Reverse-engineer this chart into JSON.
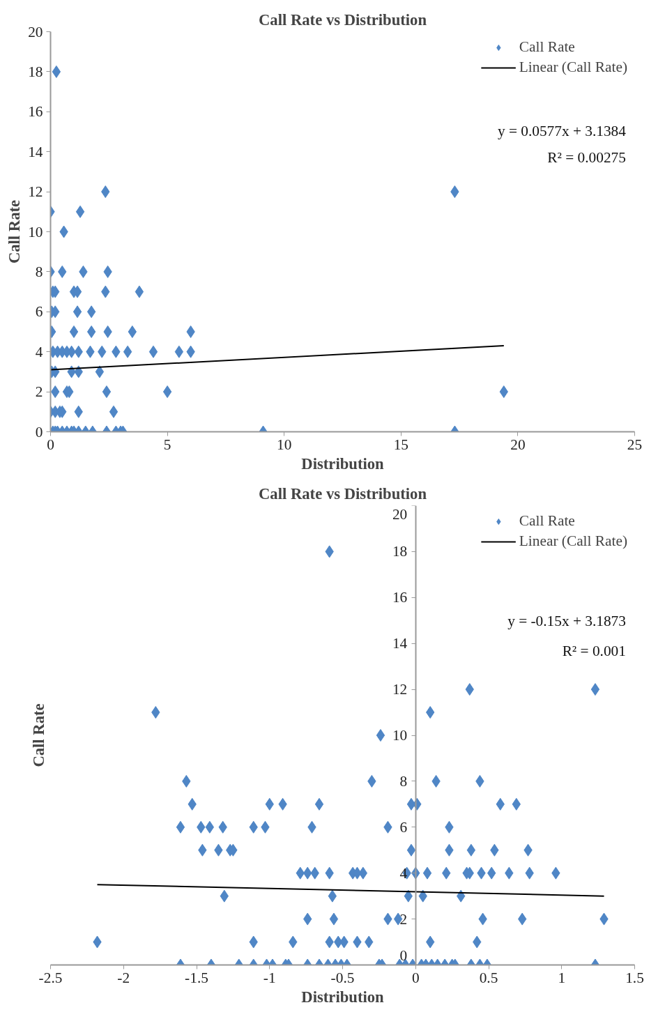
{
  "chart_data": [
    {
      "type": "scatter",
      "title": "Call Rate vs Distribution",
      "xlabel": "Distribution",
      "ylabel": "Call Rate",
      "xlim": [
        0,
        25
      ],
      "ylim": [
        0,
        20
      ],
      "xticks": [
        0,
        5,
        10,
        15,
        20,
        25
      ],
      "yticks": [
        0,
        2,
        4,
        6,
        8,
        10,
        12,
        14,
        16,
        18,
        20
      ],
      "grid": false,
      "legend": "top right",
      "annotations": [
        "y = 0.0577x + 3.1384",
        "R² = 0.00275"
      ],
      "series": [
        {
          "name": "Call Rate",
          "type": "scatter",
          "marker": "diamond",
          "color": "#4f86c6",
          "x": [
            0.25,
            2.35,
            17.3,
            0,
            1.27,
            0.57,
            0,
            0.5,
            1.4,
            2.45,
            0.1,
            0.2,
            1.0,
            1.15,
            2.35,
            3.8,
            0.05,
            0.2,
            1.15,
            1.75,
            0.05,
            1.0,
            1.75,
            2.45,
            3.5,
            6.0,
            0.1,
            0.3,
            0.5,
            0.7,
            0.9,
            1.2,
            1.7,
            2.2,
            2.8,
            3.3,
            4.4,
            5.5,
            6.0,
            0.05,
            0.2,
            0.9,
            1.2,
            2.1,
            0.2,
            0.7,
            0.8,
            2.4,
            5.0,
            19.4,
            0,
            0.2,
            0.4,
            0.5,
            1.2,
            2.7,
            0.1,
            0.2,
            0.3,
            0.5,
            0.7,
            0.9,
            1.0,
            1.2,
            1.5,
            1.8,
            2.4,
            2.8,
            3.0,
            3.1,
            9.1,
            17.3
          ],
          "values": [
            18,
            12,
            12,
            11,
            11,
            10,
            8,
            8,
            8,
            8,
            7,
            7,
            7,
            7,
            7,
            7,
            6,
            6,
            6,
            6,
            5,
            5,
            5,
            5,
            5,
            5,
            4,
            4,
            4,
            4,
            4,
            4,
            4,
            4,
            4,
            4,
            4,
            4,
            4,
            3,
            3,
            3,
            3,
            3,
            2,
            2,
            2,
            2,
            2,
            2,
            1,
            1,
            1,
            1,
            1,
            1,
            0,
            0,
            0,
            0,
            0,
            0,
            0,
            0,
            0,
            0,
            0,
            0,
            0,
            0,
            0,
            0
          ]
        },
        {
          "name": "Linear (Call Rate)",
          "type": "line",
          "color": "#000000",
          "x": [
            0,
            19.4
          ],
          "values": [
            3.1,
            4.3
          ]
        }
      ]
    },
    {
      "type": "scatter",
      "title": "Call Rate vs Distribution",
      "xlabel": "Distribution",
      "ylabel": "Call Rate",
      "xlim": [
        -2.5,
        1.5
      ],
      "ylim": [
        0,
        20
      ],
      "xticks": [
        -2.5,
        -2,
        -1.5,
        -1,
        -0.5,
        0,
        0.5,
        1,
        1.5
      ],
      "yticks": [
        0,
        2,
        4,
        6,
        8,
        10,
        12,
        14,
        16,
        18,
        20
      ],
      "grid": false,
      "legend": "top right",
      "annotations": [
        "y = -0.15x + 3.1873",
        "R² = 0.001"
      ],
      "series": [
        {
          "name": "Call Rate",
          "type": "scatter",
          "marker": "diamond",
          "color": "#4f86c6",
          "x": [
            -0.59,
            0.37,
            1.23,
            -1.78,
            0.1,
            -0.24,
            -1.57,
            -0.3,
            0.14,
            0.44,
            -1.53,
            -1.0,
            -0.91,
            -0.66,
            -0.03,
            0.01,
            0.58,
            0.69,
            -1.61,
            -1.47,
            -1.41,
            -1.32,
            -1.11,
            -1.03,
            -0.71,
            -0.19,
            0.23,
            -1.46,
            -1.35,
            -1.27,
            -1.25,
            -0.03,
            0.23,
            0.38,
            0.54,
            0.77,
            -0.79,
            -0.74,
            -0.69,
            -0.59,
            -0.43,
            -0.4,
            -0.36,
            -0.06,
            0.0,
            0.08,
            0.21,
            0.35,
            0.37,
            0.45,
            0.52,
            0.64,
            0.78,
            0.96,
            -1.31,
            -0.57,
            -0.05,
            0.05,
            0.31,
            -0.74,
            -0.56,
            -0.19,
            -0.12,
            0.46,
            0.73,
            1.29,
            -2.18,
            -1.11,
            -0.84,
            -0.59,
            -0.53,
            -0.49,
            -0.4,
            -0.32,
            0.1,
            0.42,
            -1.61,
            -1.4,
            -1.21,
            -1.11,
            -1.02,
            -0.98,
            -0.89,
            -0.87,
            -0.74,
            -0.66,
            -0.6,
            -0.55,
            -0.51,
            -0.47,
            -0.25,
            -0.23,
            -0.11,
            -0.07,
            -0.02,
            0.04,
            0.07,
            0.11,
            0.15,
            0.2,
            0.25,
            0.27,
            0.38,
            0.44,
            0.49,
            1.23
          ],
          "values": [
            18,
            12,
            12,
            11,
            11,
            10,
            8,
            8,
            8,
            8,
            7,
            7,
            7,
            7,
            7,
            7,
            7,
            7,
            6,
            6,
            6,
            6,
            6,
            6,
            6,
            6,
            6,
            5,
            5,
            5,
            5,
            5,
            5,
            5,
            5,
            5,
            4,
            4,
            4,
            4,
            4,
            4,
            4,
            4,
            4,
            4,
            4,
            4,
            4,
            4,
            4,
            4,
            4,
            4,
            3,
            3,
            3,
            3,
            3,
            2,
            2,
            2,
            2,
            2,
            2,
            2,
            1,
            1,
            1,
            1,
            1,
            1,
            1,
            1,
            1,
            1,
            0,
            0,
            0,
            0,
            0,
            0,
            0,
            0,
            0,
            0,
            0,
            0,
            0,
            0,
            0,
            0,
            0,
            0,
            0,
            0,
            0,
            0,
            0,
            0,
            0,
            0,
            0,
            0,
            0,
            0
          ]
        },
        {
          "name": "Linear (Call Rate)",
          "type": "line",
          "color": "#000000",
          "x": [
            -2.18,
            1.29
          ],
          "values": [
            3.5,
            3.0
          ]
        }
      ]
    }
  ]
}
